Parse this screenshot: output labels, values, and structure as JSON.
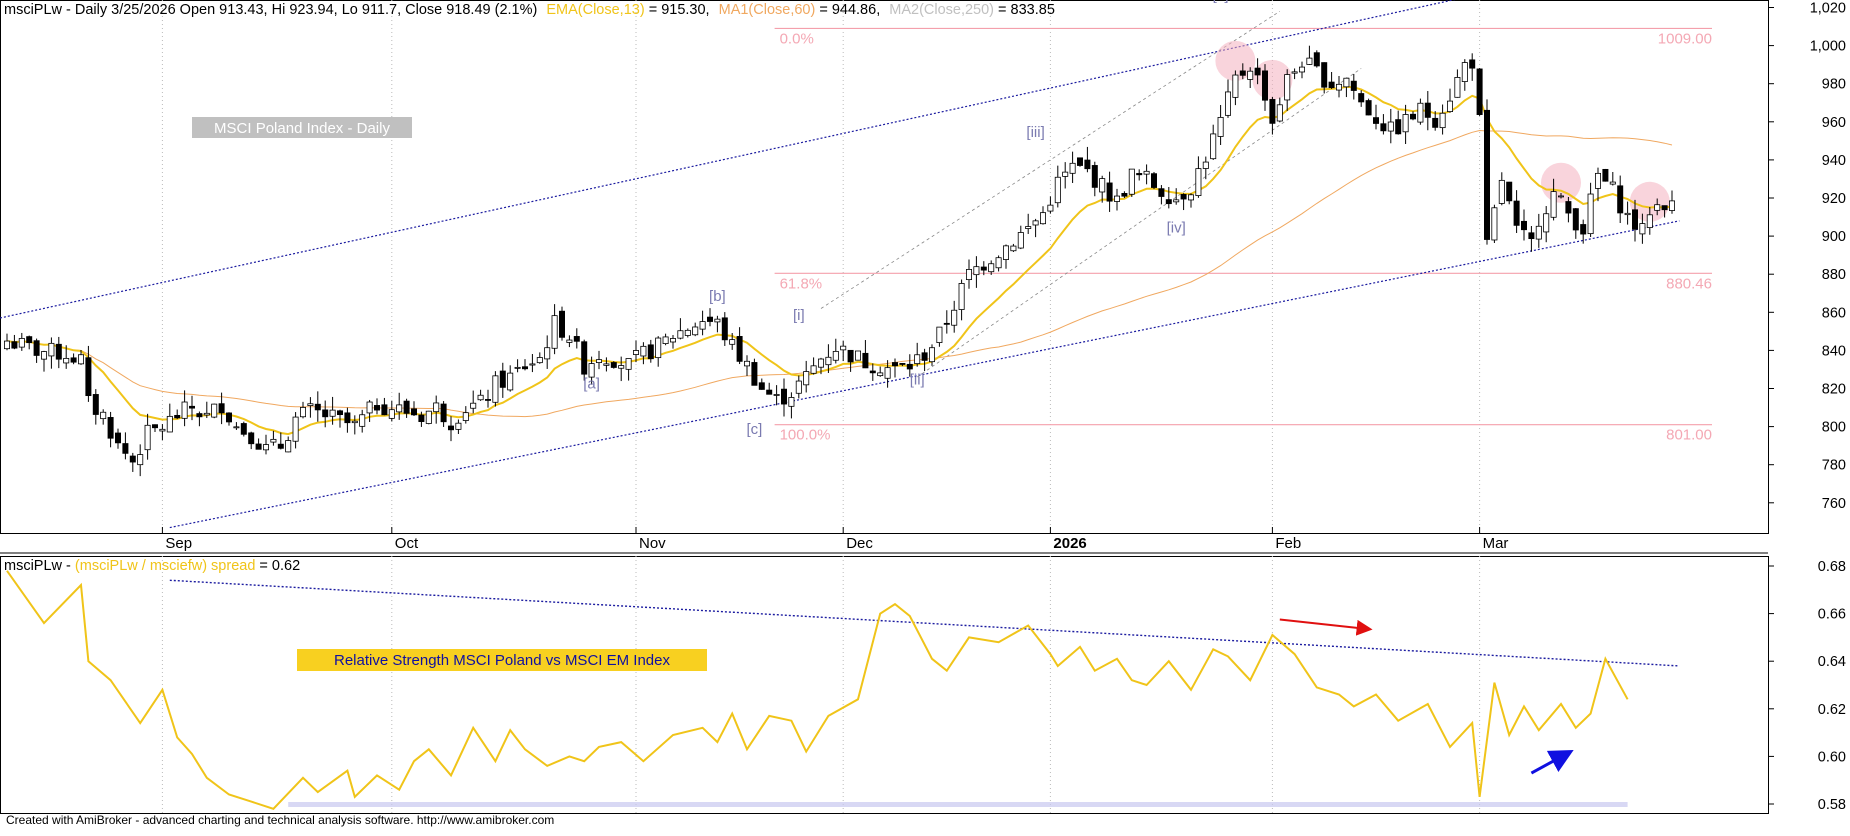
{
  "header": {
    "symbol_line": "msciPLw - Daily 3/25/2026 Open 913.43, Hi 923.94, Lo 911.7, Close 918.49 (2.1%)",
    "ema_label": "EMA(Close,13)",
    "ema_value": " = 915.30,",
    "ma1_label": "MA1(Close,60)",
    "ma1_value": " = 944.86,",
    "ma2_label": "MA2(Close,250)",
    "ma2_value": " = 833.85"
  },
  "colors": {
    "ema": "#f0c419",
    "ma1": "#f0a860",
    "ma2": "#c8c8c8",
    "fib": "#f4a0ac",
    "fib_text": "#f4a8b4",
    "wave": "#7a7ab0",
    "trend": "#1c1ca0",
    "spread": "#f0c419",
    "red_arrow": "#e01010",
    "blue_arrow": "#1010e0",
    "highlight": "#f4b0c0"
  },
  "title_box": "MSCI Poland Index - Daily",
  "rs_title": "Relative Strength MSCI Poland vs MSCI EM Index",
  "fib": [
    {
      "pct": "0.0%",
      "value": "1009.00",
      "y": 1009.0
    },
    {
      "pct": "61.8%",
      "value": "880.46",
      "y": 880.46
    },
    {
      "pct": "100.0%",
      "value": "801.00",
      "y": 801.0
    }
  ],
  "waves": [
    {
      "label": "[a]",
      "i": 79,
      "y": 820
    },
    {
      "label": "[b]",
      "i": 96,
      "y": 866
    },
    {
      "label": "[c]",
      "i": 101,
      "y": 796
    },
    {
      "label": "[i]",
      "i": 107,
      "y": 856
    },
    {
      "label": "[ii]",
      "i": 123,
      "y": 822
    },
    {
      "label": "[iii]",
      "i": 139,
      "y": 952
    },
    {
      "label": "[iv]",
      "i": 158,
      "y": 902
    },
    {
      "label": "[v]",
      "i": 164,
      "y": 1024
    }
  ],
  "months": [
    {
      "label": "Sep",
      "i": 21
    },
    {
      "label": "Oct",
      "i": 52
    },
    {
      "label": "Nov",
      "i": 85
    },
    {
      "label": "Dec",
      "i": 113
    },
    {
      "label": "2026",
      "i": 141,
      "bold": true
    },
    {
      "label": "Feb",
      "i": 171
    },
    {
      "label": "Mar",
      "i": 199
    }
  ],
  "lower_header": {
    "prefix": "msciPLw - ",
    "spread_label": "(msciPLw / msciefw) spread",
    "spread_value": " = 0.62"
  },
  "footer": "Created with AmiBroker - advanced charting and technical analysis software. http://www.amibroker.com",
  "chart_data": [
    {
      "type": "candlestick",
      "x_bar_count": 226,
      "ylim": [
        750,
        1024
      ],
      "yticks": [
        760,
        780,
        800,
        820,
        840,
        860,
        880,
        900,
        920,
        940,
        960,
        980,
        1000,
        1020
      ],
      "ytick_labels": [
        "760",
        "780",
        "800",
        "820",
        "840",
        "860",
        "880",
        "900",
        "920",
        "940",
        "960",
        "980",
        "1,000",
        "1,020"
      ],
      "ema13_last": 915.3,
      "ma60_last": 944.86,
      "ma250_last": 833.85,
      "last_bar": {
        "open": 913.43,
        "high": 923.94,
        "low": 911.7,
        "close": 918.49
      }
    },
    {
      "type": "line",
      "name": "(msciPLw / msciefw) spread",
      "ylim": [
        0.575,
        0.69
      ],
      "yticks": [
        0.58,
        0.6,
        0.62,
        0.64,
        0.66,
        0.68
      ],
      "ytick_labels": [
        "0.58",
        "0.60",
        "0.62",
        "0.64",
        "0.66",
        "0.68"
      ],
      "x_index": [
        0,
        5,
        10,
        11,
        14,
        18,
        21,
        23,
        25,
        27,
        30,
        33,
        36,
        40,
        42,
        46,
        47,
        50,
        53,
        55,
        57,
        60,
        63,
        66,
        68,
        70,
        73,
        76,
        78,
        80,
        83,
        86,
        90,
        94,
        96,
        98,
        100,
        103,
        106,
        108,
        111,
        115,
        118,
        120,
        122,
        125,
        127,
        130,
        134,
        138,
        141,
        142,
        145,
        147,
        150,
        152,
        154,
        157,
        160,
        163,
        165,
        168,
        171,
        174,
        177,
        180,
        182,
        185,
        188,
        192,
        195,
        198,
        199,
        201,
        203,
        205,
        207,
        210,
        212,
        214,
        216,
        219
      ],
      "values": [
        0.678,
        0.656,
        0.672,
        0.64,
        0.632,
        0.614,
        0.628,
        0.608,
        0.601,
        0.591,
        0.584,
        0.581,
        0.578,
        0.591,
        0.585,
        0.594,
        0.583,
        0.592,
        0.586,
        0.598,
        0.603,
        0.592,
        0.612,
        0.598,
        0.611,
        0.603,
        0.596,
        0.6,
        0.598,
        0.604,
        0.606,
        0.598,
        0.609,
        0.612,
        0.606,
        0.618,
        0.603,
        0.617,
        0.615,
        0.602,
        0.617,
        0.624,
        0.66,
        0.664,
        0.659,
        0.641,
        0.636,
        0.65,
        0.648,
        0.655,
        0.643,
        0.638,
        0.646,
        0.636,
        0.641,
        0.632,
        0.63,
        0.64,
        0.628,
        0.645,
        0.642,
        0.632,
        0.651,
        0.643,
        0.629,
        0.626,
        0.621,
        0.626,
        0.615,
        0.622,
        0.604,
        0.614,
        0.583,
        0.631,
        0.609,
        0.621,
        0.611,
        0.622,
        0.612,
        0.618,
        0.641,
        0.624
      ]
    }
  ]
}
